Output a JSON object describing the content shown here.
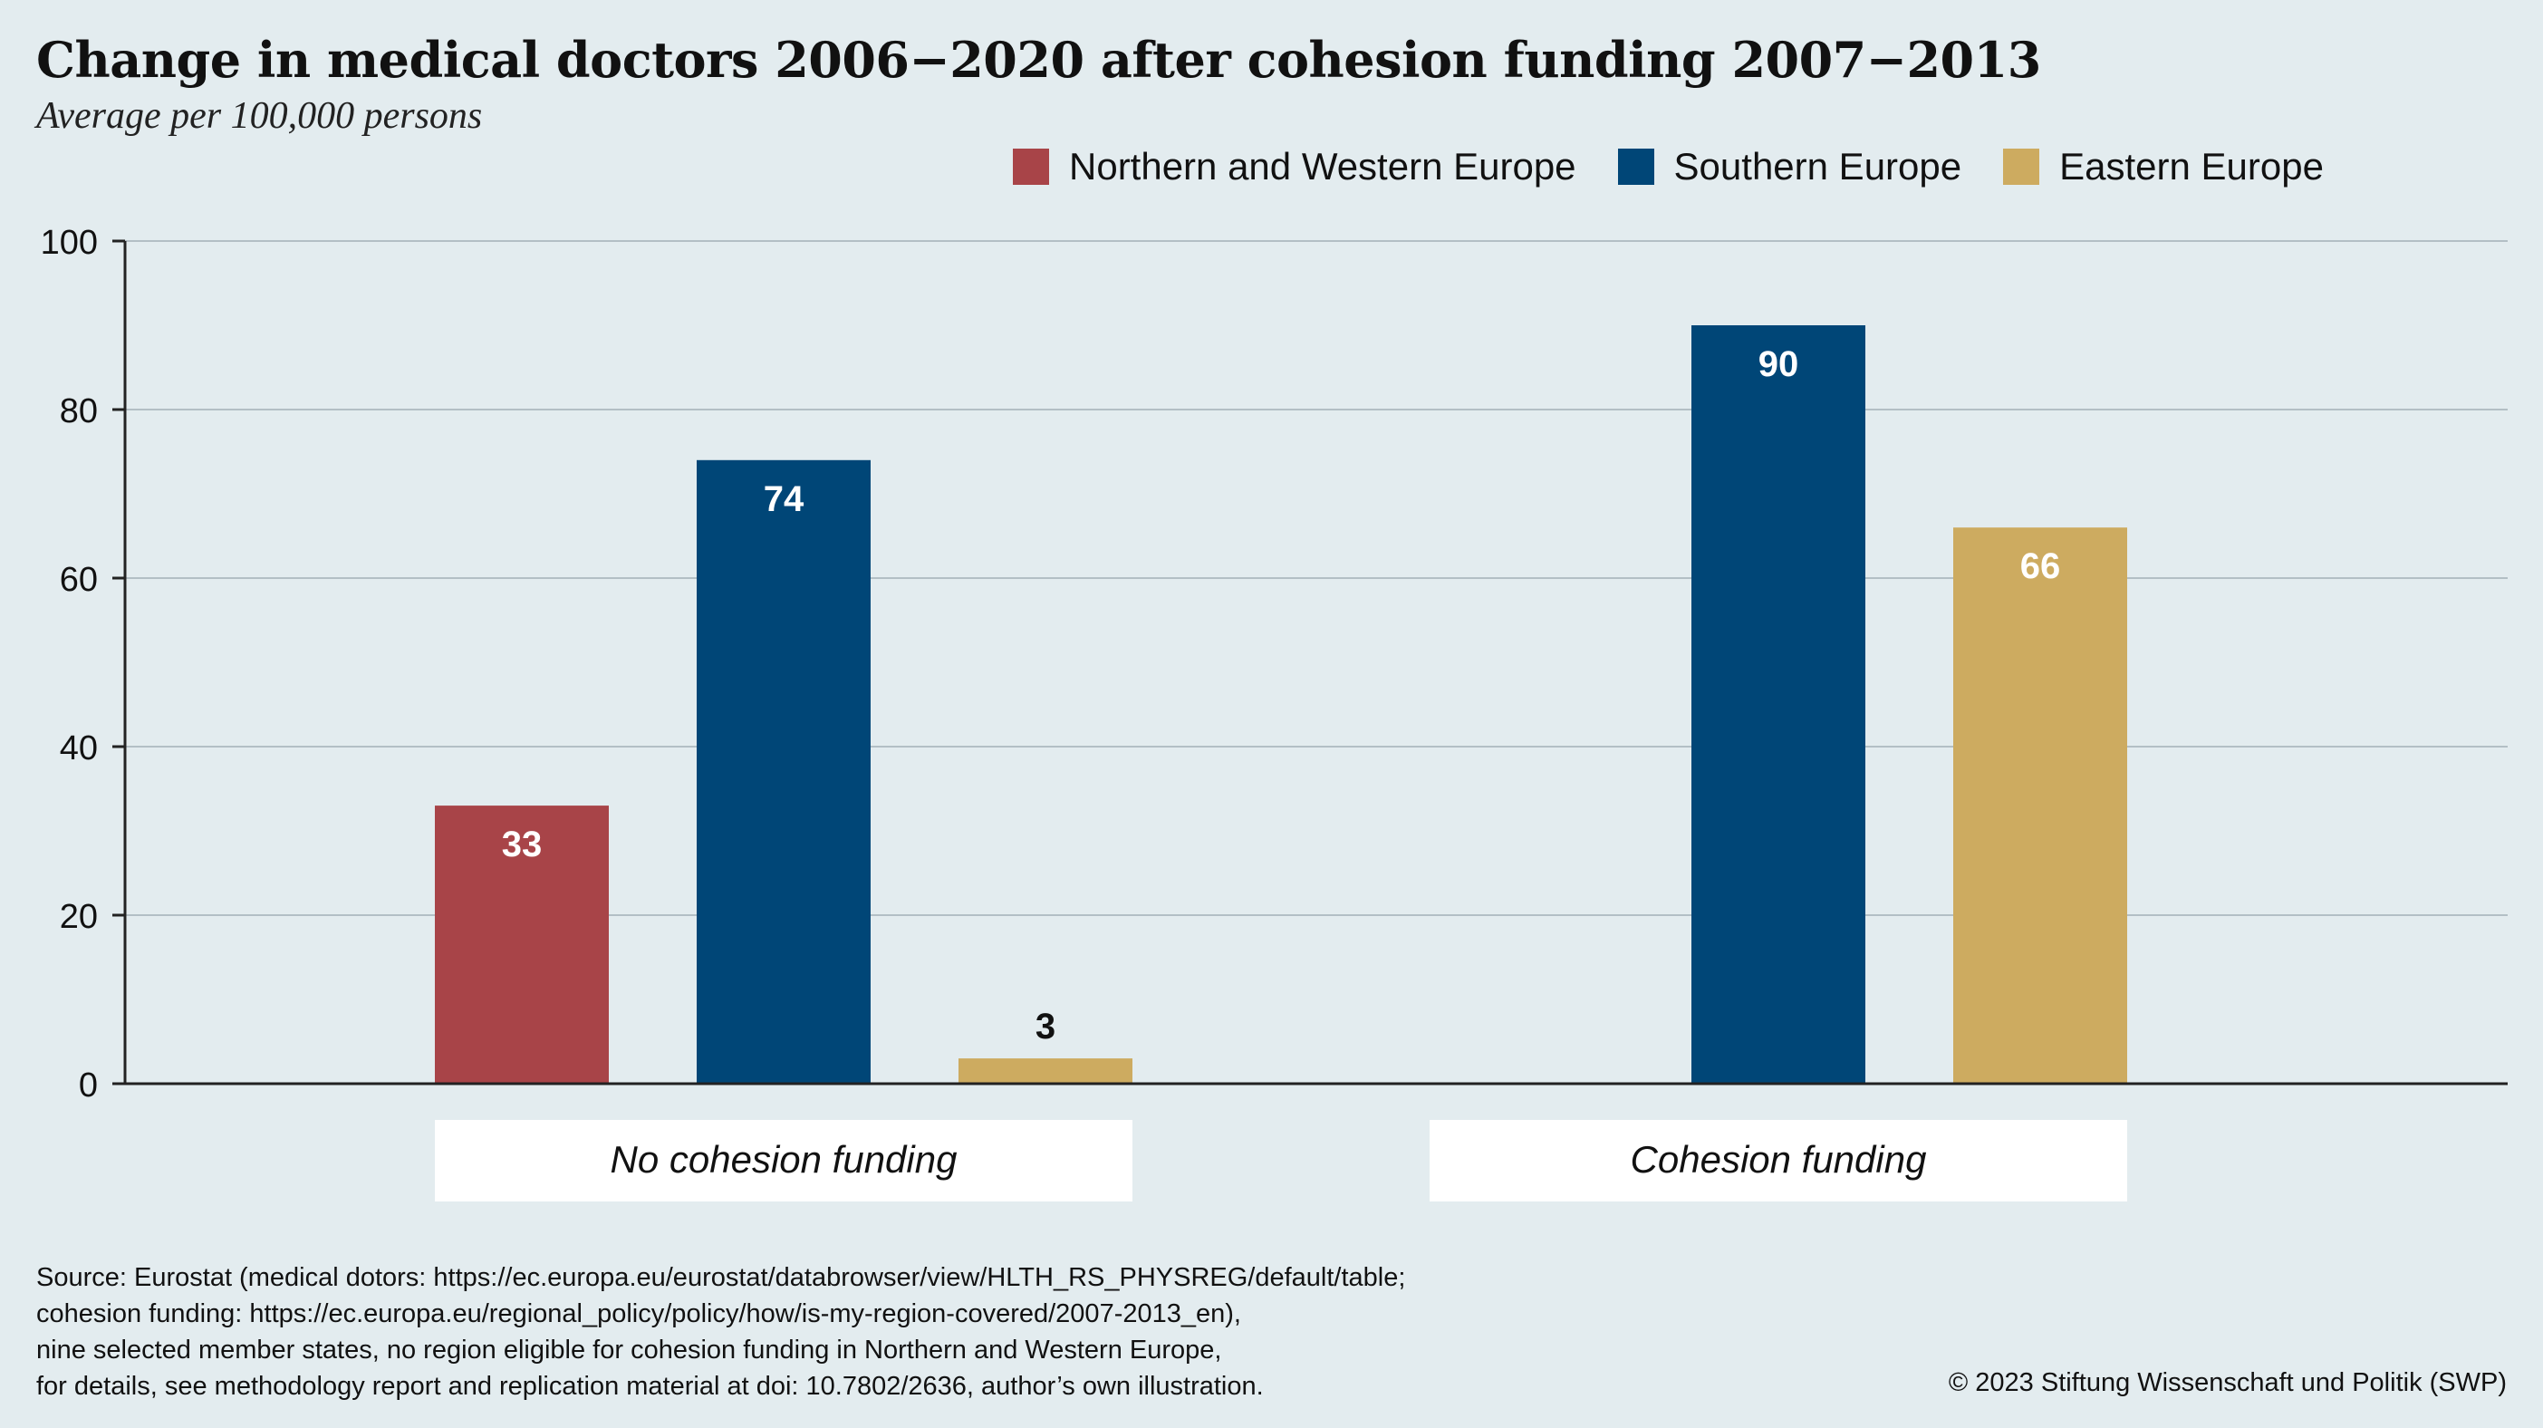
{
  "title": "Change in medical doctors 2006−2020 after cohesion funding 2007−2013",
  "subtitle": "Average per 100,000 persons",
  "colors": {
    "northern_western": "#a84448",
    "southern": "#004677",
    "eastern": "#cdab60",
    "background": "#e3ecef"
  },
  "chart_data": {
    "type": "bar",
    "categories": [
      "No cohesion funding",
      "Cohesion funding"
    ],
    "series": [
      {
        "name": "Northern and Western Europe",
        "values": [
          33,
          null
        ]
      },
      {
        "name": "Southern Europe",
        "values": [
          74,
          90
        ]
      },
      {
        "name": "Eastern Europe",
        "values": [
          3,
          66
        ]
      }
    ],
    "data_labels": [
      [
        "33",
        "74",
        "3"
      ],
      [
        "",
        "90",
        "66"
      ]
    ],
    "ylim": [
      0,
      100
    ],
    "yticks": [
      "0",
      "20",
      "40",
      "60",
      "80",
      "100"
    ],
    "grid": true,
    "legend": "top-right"
  },
  "source": [
    "Source: Eurostat (medical dotors: https://ec.europa.eu/eurostat/databrowser/view/HLTH_RS_PHYSREG/default/table;",
    "cohesion funding: https://ec.europa.eu/regional_policy/policy/how/is-my-region-covered/2007-2013_en),",
    "nine selected member states, no region eligible for cohesion funding in Northern and Western Europe,",
    "for details, see methodology report and replication material at doi: 10.7802/2636, author’s own illustration."
  ],
  "copyright": "© 2023 Stiftung Wissenschaft und Politik (SWP)"
}
